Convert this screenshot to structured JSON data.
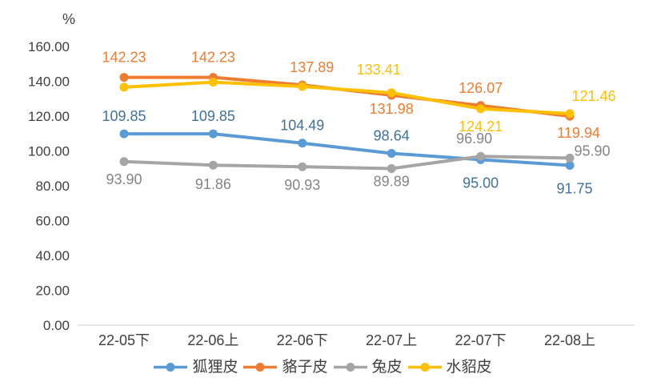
{
  "chart_data": {
    "type": "line",
    "title": "",
    "ylabel": "%",
    "grid": false,
    "legend_position": "bottom",
    "ylim": [
      0,
      160
    ],
    "ytick_step": 20,
    "ytick_labels": [
      "0.00",
      "20.00",
      "40.00",
      "60.00",
      "80.00",
      "100.00",
      "120.00",
      "140.00",
      "160.00"
    ],
    "categories": [
      "22-05下",
      "22-06上",
      "22-06下",
      "22-07上",
      "22-07下",
      "22-08上"
    ],
    "series": [
      {
        "name": "狐狸皮",
        "color": "#5B9BD5",
        "label_color": "#41719C",
        "values": [
          109.85,
          109.85,
          104.49,
          98.64,
          95.0,
          91.75
        ],
        "labels": [
          "109.85",
          "109.85",
          "104.49",
          "98.64",
          "95.00",
          "91.75"
        ],
        "label_side": [
          "above",
          "above",
          "above",
          "above",
          "below",
          "below"
        ],
        "label_dx": [
          0,
          0,
          0,
          0,
          0,
          6
        ],
        "label_dy": [
          0,
          0,
          0,
          0,
          5,
          5
        ]
      },
      {
        "name": "貉子皮",
        "color": "#ED7D31",
        "label_color": "#ED7D31",
        "values": [
          142.23,
          142.23,
          137.89,
          131.98,
          126.07,
          119.94
        ],
        "labels": [
          "142.23",
          "142.23",
          "137.89",
          "131.98",
          "126.07",
          "119.94"
        ],
        "label_side": [
          "above",
          "above",
          "above",
          "below",
          "above",
          "below"
        ],
        "label_dx": [
          0,
          0,
          12,
          0,
          0,
          11
        ],
        "label_dy": [
          -3,
          -3,
          0,
          -7,
          0,
          -3
        ]
      },
      {
        "name": "兔皮",
        "color": "#A5A5A5",
        "label_color": "#858585",
        "values": [
          93.9,
          91.86,
          90.93,
          89.89,
          96.9,
          95.9
        ],
        "labels": [
          "93.90",
          "91.86",
          "90.93",
          "89.89",
          "96.90",
          "95.90"
        ],
        "label_side": [
          "below",
          "below",
          "below",
          "below",
          "above",
          "above"
        ],
        "label_dx": [
          0,
          0,
          0,
          0,
          -8,
          28
        ],
        "label_dy": [
          -2,
          0,
          -1,
          -8,
          0,
          13
        ]
      },
      {
        "name": "水貂皮",
        "color": "#FFC000",
        "label_color": "#FFC000",
        "values": [
          136.6,
          139.5,
          137.0,
          133.41,
          124.21,
          121.46
        ],
        "labels": [
          "",
          "",
          "",
          "133.41",
          "124.21",
          "121.46"
        ],
        "label_side": [
          "above",
          "above",
          "above",
          "above",
          "below",
          "above"
        ],
        "label_dx": [
          0,
          0,
          0,
          -16,
          0,
          30
        ],
        "label_dy": [
          0,
          0,
          0,
          -7,
          -2,
          0
        ]
      }
    ]
  }
}
